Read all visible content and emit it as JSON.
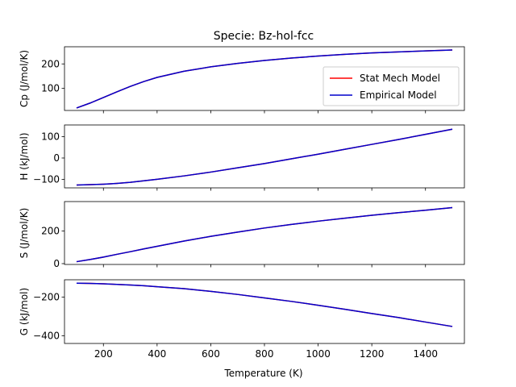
{
  "chart_data": {
    "type": "line",
    "title": "Specie: Bz-hol-fcc",
    "xlabel": "Temperature (K)",
    "xlim": [
      55,
      1545
    ],
    "xticks": [
      200,
      400,
      600,
      800,
      1000,
      1200,
      1400
    ],
    "xtick_labels": [
      "200",
      "400",
      "600",
      "800",
      "1000",
      "1200",
      "1400"
    ],
    "grid": false,
    "legend": {
      "placement": "lower-right",
      "panel": 0,
      "entries": [
        "Stat Mech Model",
        "Empirical Model"
      ]
    },
    "series_colors": {
      "Stat Mech Model": "#ff0000",
      "Empirical Model": "#0000cc"
    },
    "x": [
      100,
      150,
      200,
      250,
      300,
      350,
      400,
      500,
      600,
      700,
      800,
      900,
      1000,
      1100,
      1200,
      1300,
      1400,
      1500
    ],
    "panels": [
      {
        "ylabel": "Cp (J/mol/K)",
        "ylim": [
          10,
          270
        ],
        "yticks": [
          100,
          200
        ],
        "ytick_labels": [
          "100",
          "200"
        ],
        "series": [
          {
            "name": "Stat Mech Model",
            "values": [
              20,
              40,
              63,
              86,
              108,
              128,
              145,
              170,
              188,
              202,
              214,
              224,
              232,
              239,
              245,
              249,
              253,
              257
            ]
          },
          {
            "name": "Empirical Model",
            "values": [
              20,
              40,
              63,
              86,
              108,
              128,
              145,
              170,
              188,
              202,
              214,
              224,
              232,
              239,
              245,
              249,
              253,
              257
            ]
          }
        ]
      },
      {
        "ylabel": "H (kJ/mol)",
        "ylim": [
          -140,
          155
        ],
        "yticks": [
          -100,
          0,
          100
        ],
        "ytick_labels": [
          "−100",
          "0",
          "100"
        ],
        "series": [
          {
            "name": "Stat Mech Model",
            "values": [
              -127,
              -125,
              -123,
              -119,
              -114,
              -107,
              -100,
              -84,
              -66,
              -46,
              -26,
              -4,
              18,
              41,
              64,
              87,
              111,
              135
            ]
          },
          {
            "name": "Empirical Model",
            "values": [
              -127,
              -125,
              -123,
              -119,
              -114,
              -107,
              -100,
              -84,
              -66,
              -46,
              -26,
              -4,
              18,
              41,
              64,
              87,
              111,
              135
            ]
          }
        ]
      },
      {
        "ylabel": "S (J/mol/K)",
        "ylim": [
          -5,
          380
        ],
        "yticks": [
          0,
          200
        ],
        "ytick_labels": [
          "0",
          "200"
        ],
        "series": [
          {
            "name": "Stat Mech Model",
            "values": [
              12,
              25,
              40,
              57,
              73,
              90,
              106,
              138,
              167,
              193,
              218,
              240,
              260,
              278,
              296,
              312,
              327,
              343
            ]
          },
          {
            "name": "Empirical Model",
            "values": [
              12,
              25,
              40,
              57,
              73,
              90,
              106,
              138,
              167,
              193,
              218,
              240,
              260,
              278,
              296,
              312,
              327,
              343
            ]
          }
        ]
      },
      {
        "ylabel": "G (kJ/mol)",
        "ylim": [
          -440,
          -110
        ],
        "yticks": [
          -200,
          -400
        ],
        "ytick_labels": [
          "−200",
          "−400"
        ],
        "series": [
          {
            "name": "Stat Mech Model",
            "values": [
              -128,
              -129,
              -131,
              -134,
              -137,
              -141,
              -146,
              -156,
              -170,
              -186,
              -204,
              -222,
              -242,
              -263,
              -285,
              -306,
              -329,
              -352
            ]
          },
          {
            "name": "Empirical Model",
            "values": [
              -128,
              -129,
              -131,
              -134,
              -137,
              -141,
              -146,
              -156,
              -170,
              -186,
              -204,
              -222,
              -242,
              -263,
              -285,
              -306,
              -329,
              -352
            ]
          }
        ]
      }
    ]
  }
}
